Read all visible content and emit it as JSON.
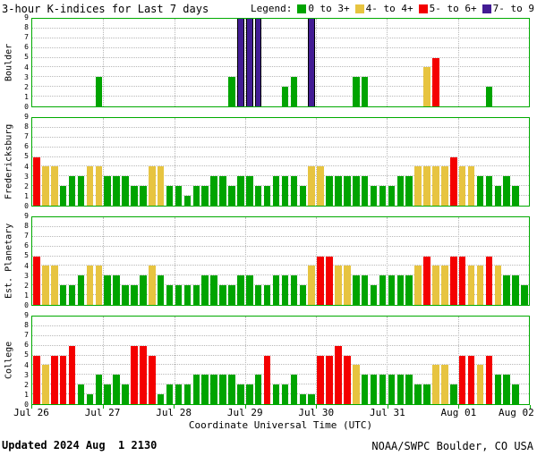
{
  "title": "3-hour K-indices for Last 7 days",
  "legend": {
    "label": "Legend:",
    "items": [
      {
        "label": "0 to 3+",
        "color": "#00a400"
      },
      {
        "label": "4- to 4+",
        "color": "#e7c440"
      },
      {
        "label": "5- to 6+",
        "color": "#f40000"
      },
      {
        "label": "7- to 9",
        "color": "#431c94"
      }
    ]
  },
  "colors": {
    "green": "#00a400",
    "yellow": "#e7c440",
    "red": "#f40000",
    "purple": "#431c94",
    "frame": "#00aa00",
    "grid": "#b8b8b8"
  },
  "x_axis": {
    "title": "Coordinate Universal Time (UTC)",
    "tick_labels": [
      "Jul 26",
      "Jul 27",
      "Jul 28",
      "Jul 29",
      "Jul 30",
      "Jul 31",
      "Aug 01",
      "Aug 02"
    ]
  },
  "y_axis": {
    "ticks": [
      "0",
      "1",
      "2",
      "3",
      "4",
      "5",
      "6",
      "7",
      "8",
      "9"
    ]
  },
  "footer": {
    "updated": "Updated 2024 Aug  1 2130",
    "source": "NOAA/SWPC Boulder, CO USA"
  },
  "chart_data": {
    "type": "bar",
    "title": "3-hour K-indices for Last 7 days",
    "bars_per_day": 8,
    "days": 7,
    "ylim": [
      0,
      9
    ],
    "y_ticks": [
      0,
      1,
      2,
      3,
      4,
      5,
      6,
      7,
      8,
      9
    ],
    "x_tick_labels": [
      "Jul 26",
      "Jul 27",
      "Jul 28",
      "Jul 29",
      "Jul 30",
      "Jul 31",
      "Aug 01",
      "Aug 02"
    ],
    "color_thresholds": [
      {
        "range": "0 to 3+",
        "color": "#00a400"
      },
      {
        "range": "4- to 4+",
        "color": "#e7c440"
      },
      {
        "range": "5- to 6+",
        "color": "#f40000"
      },
      {
        "range": "7- to 9",
        "color": "#431c94"
      }
    ],
    "panels": [
      {
        "station": "Boulder",
        "values": [
          0,
          0,
          0,
          0,
          0,
          0,
          0,
          3,
          0,
          0,
          0,
          0,
          0,
          0,
          0,
          0,
          0,
          0,
          0,
          0,
          0,
          0,
          3,
          9,
          9,
          9,
          0,
          0,
          2,
          3,
          0,
          9,
          0,
          0,
          0,
          0,
          3,
          3,
          0,
          0,
          0,
          0,
          0,
          0,
          4,
          5,
          0,
          0,
          0,
          0,
          0,
          2,
          0,
          0,
          0,
          0
        ]
      },
      {
        "station": "Fredericksburg",
        "values": [
          5,
          4,
          4,
          2,
          3,
          3,
          4,
          4,
          3,
          3,
          3,
          2,
          2,
          4,
          4,
          2,
          2,
          1,
          2,
          2,
          3,
          3,
          2,
          3,
          3,
          2,
          2,
          3,
          3,
          3,
          2,
          4,
          4,
          3,
          3,
          3,
          3,
          3,
          2,
          2,
          2,
          3,
          3,
          4,
          4,
          4,
          4,
          5,
          4,
          4,
          3,
          3,
          2,
          3,
          2,
          0
        ]
      },
      {
        "station": "Est. Planetary",
        "values": [
          5,
          4,
          4,
          2,
          2,
          3,
          4,
          4,
          3,
          3,
          2,
          2,
          3,
          4,
          3,
          2,
          2,
          2,
          2,
          3,
          3,
          2,
          2,
          3,
          3,
          2,
          2,
          3,
          3,
          3,
          2,
          4,
          5,
          5,
          4,
          4,
          3,
          3,
          2,
          3,
          3,
          3,
          3,
          4,
          5,
          4,
          4,
          5,
          5,
          4,
          4,
          5,
          4,
          3,
          3,
          2
        ]
      },
      {
        "station": "College",
        "values": [
          5,
          4,
          5,
          5,
          6,
          2,
          1,
          3,
          2,
          3,
          2,
          6,
          6,
          5,
          1,
          2,
          2,
          2,
          3,
          3,
          3,
          3,
          3,
          2,
          2,
          3,
          5,
          2,
          2,
          3,
          1,
          1,
          5,
          5,
          6,
          5,
          4,
          3,
          3,
          3,
          3,
          3,
          3,
          2,
          2,
          4,
          4,
          2,
          5,
          5,
          4,
          5,
          3,
          3,
          2,
          0
        ]
      }
    ]
  }
}
